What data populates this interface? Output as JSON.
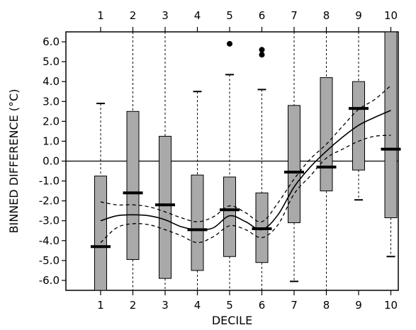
{
  "chart_data": {
    "type": "box",
    "xlabel": "DECILE",
    "ylabel": "BINNED DIFFERENCE (°C)",
    "categories": [
      "1",
      "2",
      "3",
      "4",
      "5",
      "6",
      "7",
      "8",
      "9",
      "10"
    ],
    "ylim": [
      -6.5,
      6.5
    ],
    "yticks": [
      "6.0",
      "5.0",
      "4.0",
      "3.0",
      "2.0",
      "1.0",
      "0.0",
      "-1.0",
      "-2.0",
      "-3.0",
      "-4.0",
      "-5.0",
      "-6.0"
    ],
    "ytick_values": [
      6,
      5,
      4,
      3,
      2,
      1,
      0,
      -1,
      -2,
      -3,
      -4,
      -5,
      -6
    ],
    "reference_line": 0,
    "boxes": [
      {
        "category": "1",
        "q1": -6.5,
        "median": -4.3,
        "q3": -0.75,
        "whisker_low": -6.5,
        "whisker_high": 2.9,
        "outliers": []
      },
      {
        "category": "2",
        "q1": -4.95,
        "median": -1.6,
        "q3": 2.5,
        "whisker_low": -6.5,
        "whisker_high": 6.5,
        "outliers": []
      },
      {
        "category": "3",
        "q1": -5.9,
        "median": -2.2,
        "q3": 1.25,
        "whisker_low": -6.5,
        "whisker_high": 6.5,
        "outliers": []
      },
      {
        "category": "4",
        "q1": -5.5,
        "median": -3.45,
        "q3": -0.7,
        "whisker_low": -6.5,
        "whisker_high": 3.5,
        "outliers": []
      },
      {
        "category": "5",
        "q1": -4.8,
        "median": -2.45,
        "q3": -0.8,
        "whisker_low": -6.5,
        "whisker_high": 4.35,
        "outliers": [
          5.9
        ]
      },
      {
        "category": "6",
        "q1": -5.1,
        "median": -3.4,
        "q3": -1.6,
        "whisker_low": -6.5,
        "whisker_high": 3.6,
        "outliers": [
          5.6,
          5.35
        ]
      },
      {
        "category": "7",
        "q1": -3.1,
        "median": -0.55,
        "q3": 2.8,
        "whisker_low": -6.05,
        "whisker_high": 6.5,
        "outliers": []
      },
      {
        "category": "8",
        "q1": -1.5,
        "median": -0.3,
        "q3": 4.2,
        "whisker_low": -6.5,
        "whisker_high": 6.5,
        "outliers": []
      },
      {
        "category": "9",
        "q1": -0.45,
        "median": 2.65,
        "q3": 4.0,
        "whisker_low": -1.95,
        "whisker_high": 6.5,
        "outliers": []
      },
      {
        "category": "10",
        "q1": -2.85,
        "median": 0.6,
        "q3": 6.5,
        "whisker_low": -4.8,
        "whisker_high": 6.5,
        "outliers": []
      }
    ],
    "fit_curve": {
      "x": [
        1,
        1.5,
        2,
        2.5,
        3,
        3.5,
        4,
        4.5,
        5,
        5.5,
        6,
        6.5,
        7,
        7.5,
        8,
        8.5,
        9,
        9.5,
        10
      ],
      "center": [
        -3.0,
        -2.75,
        -2.7,
        -2.75,
        -2.95,
        -3.3,
        -3.45,
        -3.35,
        -2.75,
        -3.05,
        -3.45,
        -2.7,
        -1.3,
        -0.3,
        0.5,
        1.2,
        1.8,
        2.2,
        2.55
      ],
      "upper": [
        -2.05,
        -2.2,
        -2.2,
        -2.3,
        -2.55,
        -2.85,
        -3.05,
        -2.8,
        -2.25,
        -2.6,
        -3.05,
        -2.1,
        -0.9,
        0.1,
        0.85,
        1.75,
        2.6,
        3.1,
        3.8
      ],
      "lower": [
        -4.1,
        -3.35,
        -3.15,
        -3.2,
        -3.45,
        -3.75,
        -4.1,
        -3.8,
        -3.25,
        -3.45,
        -3.85,
        -3.2,
        -1.65,
        -0.75,
        0.15,
        0.6,
        1.0,
        1.25,
        1.3
      ]
    }
  }
}
